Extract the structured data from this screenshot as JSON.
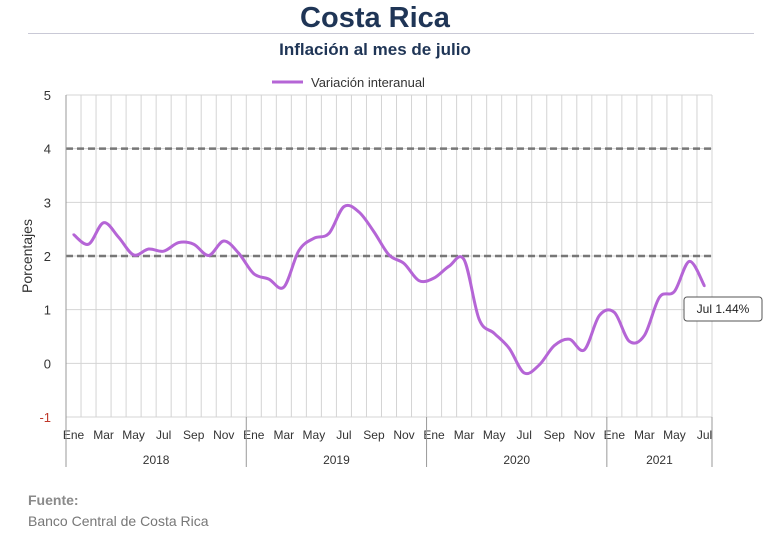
{
  "title": "Costa Rica",
  "subtitle": "Inflación al mes de julio",
  "source": {
    "heading": "Fuente:",
    "text": "Banco Central de Costa Rica"
  },
  "colors": {
    "series": "#b565d6",
    "reference": "#777777",
    "title": "#1f3556",
    "grid": "#d4d4d4"
  },
  "chart_data": {
    "type": "line",
    "ylabel": "Porcentajes",
    "ylim": [
      -1,
      5
    ],
    "yticks": [
      -1,
      0,
      1,
      2,
      3,
      4,
      5
    ],
    "grid": true,
    "legend_position": "top-center",
    "month_ticks": [
      "Ene",
      "Mar",
      "May",
      "Jul",
      "Sep",
      "Nov",
      "Ene",
      "Mar",
      "May",
      "Jul",
      "Sep",
      "Nov",
      "Ene",
      "Mar",
      "May",
      "Jul",
      "Sep",
      "Nov",
      "Ene",
      "Mar",
      "May",
      "Jul"
    ],
    "year_labels": [
      "2018",
      "2019",
      "2020",
      "2021"
    ],
    "x": [
      "2018-01",
      "2018-02",
      "2018-03",
      "2018-04",
      "2018-05",
      "2018-06",
      "2018-07",
      "2018-08",
      "2018-09",
      "2018-10",
      "2018-11",
      "2018-12",
      "2019-01",
      "2019-02",
      "2019-03",
      "2019-04",
      "2019-05",
      "2019-06",
      "2019-07",
      "2019-08",
      "2019-09",
      "2019-10",
      "2019-11",
      "2019-12",
      "2020-01",
      "2020-02",
      "2020-03",
      "2020-04",
      "2020-05",
      "2020-06",
      "2020-07",
      "2020-08",
      "2020-09",
      "2020-10",
      "2020-11",
      "2020-12",
      "2021-01",
      "2021-02",
      "2021-03",
      "2021-04",
      "2021-05",
      "2021-06",
      "2021-07"
    ],
    "series": [
      {
        "name": "Variación interanual",
        "values": [
          2.4,
          2.22,
          2.62,
          2.35,
          2.02,
          2.13,
          2.09,
          2.25,
          2.22,
          2.01,
          2.28,
          2.05,
          1.67,
          1.57,
          1.42,
          2.1,
          2.33,
          2.42,
          2.92,
          2.82,
          2.45,
          2.02,
          1.86,
          1.54,
          1.59,
          1.81,
          1.93,
          0.82,
          0.56,
          0.28,
          -0.18,
          -0.03,
          0.33,
          0.45,
          0.25,
          0.89,
          0.95,
          0.41,
          0.52,
          1.23,
          1.34,
          1.9,
          1.44
        ]
      }
    ],
    "reference_lines": [
      2,
      4
    ],
    "annotation": {
      "label": "Jul 1.44%",
      "x": "2021-07",
      "y": 1.44
    }
  }
}
